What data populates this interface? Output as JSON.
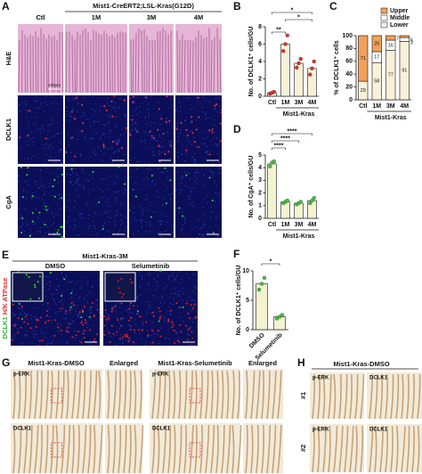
{
  "panel_labels": [
    "A",
    "B",
    "C",
    "D",
    "E",
    "F",
    "G",
    "H"
  ],
  "panel_a": {
    "header": "Mist1-CreERT2;LSL-Kras(G12D)",
    "columns": [
      "Ctl",
      "1M",
      "3M",
      "4M"
    ],
    "rows": [
      "H&E",
      "DCLK1",
      "CgA"
    ],
    "scale_bars": [
      "100μm",
      "100μm",
      "100μm",
      "100μm",
      "100μm",
      "100μm",
      "100μm",
      "100μm",
      "100μm"
    ]
  },
  "panel_e": {
    "header": "Mist1-Kras-3M",
    "columns": [
      "DMSO",
      "Selumetinib"
    ],
    "row_label_1": "DCLK1",
    "row_label_2": "H/K ATPase",
    "scale_bars": [
      "100μm",
      "100μm"
    ]
  },
  "panel_g": {
    "left_header": "Mist1-Kras-DMSO",
    "right_header": "Mist1-Kras-Selumetinib",
    "enlarged": [
      "Enlarged",
      "Enlarged"
    ],
    "rows": [
      "p-ERK",
      "DCLK1",
      "p-ERK",
      "DCLK1"
    ]
  },
  "panel_h": {
    "header": "Mist1-Kras-DMSO",
    "columns": [
      "p-ERK",
      "DCLK1",
      "p-ERK",
      "DCLK1"
    ],
    "rows": [
      "#1",
      "#2"
    ]
  },
  "chart_data": [
    {
      "type": "bar",
      "y_label": "No. of DCLK1⁺ cells/GU",
      "categories": [
        "Ctl",
        "1M",
        "3M",
        "4M"
      ],
      "group_label": "Mist1-Kras",
      "values": [
        0.4,
        6,
        3.8,
        3.2
      ],
      "points": [
        [
          0.3,
          0.4,
          0.5
        ],
        [
          5.2,
          6,
          7
        ],
        [
          3.3,
          3.8,
          4.3
        ],
        [
          2.5,
          3.2,
          4
        ]
      ],
      "color": "#f8f1d8",
      "point_color": "#e0302a",
      "ylim": [
        0,
        8
      ],
      "yticks": [
        0,
        2,
        4,
        6,
        8
      ],
      "annotations": [
        "*",
        "*",
        "**"
      ]
    },
    {
      "type": "stacked_bar",
      "y_label": "% of DCLK1⁺ cells",
      "categories": [
        "Ctl",
        "1M",
        "3M",
        "4M"
      ],
      "group_label": "Mist1-Kras",
      "series": [
        {
          "name": "Lower",
          "color": "#f8f1d8",
          "values": [
            29,
            58,
            77,
            91
          ]
        },
        {
          "name": "Middle",
          "color": "#ffffff",
          "values": [
            0,
            17,
            16,
            6
          ]
        },
        {
          "name": "Upper",
          "color": "#f2a15a",
          "values": [
            71,
            25,
            7,
            3
          ]
        }
      ],
      "ylim": [
        0,
        100
      ],
      "yticks": [
        0,
        20,
        40,
        60,
        80,
        100
      ]
    },
    {
      "type": "bar",
      "y_label": "No. of CgA⁺ cells/GU",
      "categories": [
        "Ctl",
        "1M",
        "3M",
        "4M"
      ],
      "group_label": "Mist1-Kras",
      "values": [
        4.3,
        1.3,
        1.2,
        1.4
      ],
      "points": [
        [
          4.1,
          4.4,
          4.5
        ],
        [
          1.2,
          1.3,
          1.4
        ],
        [
          1.1,
          1.2,
          1.3
        ],
        [
          1.2,
          1.4,
          1.6
        ]
      ],
      "color": "#f5f2d0",
      "point_color": "#45c03f",
      "ylim": [
        0,
        5
      ],
      "yticks": [
        0,
        1,
        2,
        3,
        4,
        5
      ],
      "annotations": [
        "****",
        "****",
        "****"
      ]
    },
    {
      "type": "bar",
      "y_label": "No. of DCLK1⁺ cells/GU",
      "categories": [
        "DMSO",
        "Selumetinib"
      ],
      "values": [
        7.8,
        2.2
      ],
      "points": [
        [
          6.8,
          7.8,
          8.8
        ],
        [
          1.9,
          2.2,
          2.5
        ]
      ],
      "color": "#f5f2d0",
      "point_color": "#45c03f",
      "ylim": [
        0,
        10
      ],
      "yticks": [
        0,
        5,
        10
      ],
      "annotations": [
        "*"
      ]
    }
  ]
}
